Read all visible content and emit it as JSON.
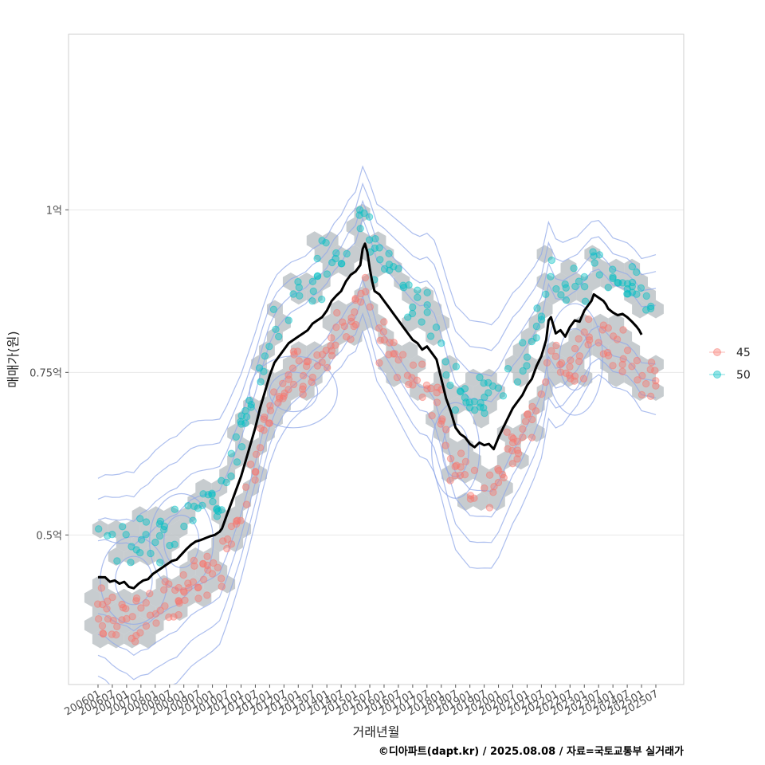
{
  "chart_data": {
    "type": "scatter",
    "title": "",
    "xlabel": "거래년월",
    "ylabel": "매매가(원)",
    "caption": "©디아파트(dapt.kr) / 2025.08.08 / 자료=국토교통부 실거래가",
    "x_ticks": [
      "200601",
      "200607",
      "200701",
      "200707",
      "200801",
      "200807",
      "200901",
      "200907",
      "201001",
      "201007",
      "201101",
      "201107",
      "201201",
      "201207",
      "201301",
      "201307",
      "201401",
      "201407",
      "201501",
      "201507",
      "201601",
      "201607",
      "201701",
      "201707",
      "201801",
      "201807",
      "201901",
      "201907",
      "202001",
      "202007",
      "202101",
      "202107",
      "202201",
      "202207",
      "202301",
      "202307",
      "202401",
      "202407",
      "202501",
      "202507"
    ],
    "y_ticks": [
      {
        "value": 0.5,
        "label": "0.5억"
      },
      {
        "value": 0.75,
        "label": "0.75억"
      },
      {
        "value": 1.0,
        "label": "1억"
      }
    ],
    "ylim": [
      0.27,
      1.27
    ],
    "grid": true,
    "legend_position": "right",
    "series": [
      {
        "name": "45",
        "color": "#F8766D"
      },
      {
        "name": "50",
        "color": "#00BFC4"
      }
    ],
    "hexbin_color": "#a9b0b6",
    "contour_color": "#90a8e8",
    "trend_color": "#000000",
    "trend": [
      [
        0,
        0.435
      ],
      [
        3,
        0.435
      ],
      [
        5,
        0.428
      ],
      [
        7,
        0.43
      ],
      [
        9,
        0.425
      ],
      [
        11,
        0.428
      ],
      [
        13,
        0.42
      ],
      [
        15,
        0.418
      ],
      [
        17,
        0.425
      ],
      [
        19,
        0.43
      ],
      [
        21,
        0.432
      ],
      [
        23,
        0.44
      ],
      [
        25,
        0.445
      ],
      [
        27,
        0.45
      ],
      [
        29,
        0.455
      ],
      [
        31,
        0.46
      ],
      [
        33,
        0.462
      ],
      [
        35,
        0.47
      ],
      [
        37,
        0.478
      ],
      [
        39,
        0.485
      ],
      [
        41,
        0.49
      ],
      [
        43,
        0.492
      ],
      [
        45,
        0.495
      ],
      [
        47,
        0.498
      ],
      [
        49,
        0.5
      ],
      [
        51,
        0.505
      ],
      [
        52,
        0.51
      ],
      [
        54,
        0.53
      ],
      [
        56,
        0.55
      ],
      [
        58,
        0.57
      ],
      [
        60,
        0.59
      ],
      [
        62,
        0.615
      ],
      [
        64,
        0.64
      ],
      [
        66,
        0.665
      ],
      [
        68,
        0.695
      ],
      [
        70,
        0.72
      ],
      [
        72,
        0.745
      ],
      [
        74,
        0.765
      ],
      [
        76,
        0.775
      ],
      [
        78,
        0.785
      ],
      [
        80,
        0.795
      ],
      [
        82,
        0.8
      ],
      [
        84,
        0.805
      ],
      [
        86,
        0.81
      ],
      [
        88,
        0.815
      ],
      [
        90,
        0.825
      ],
      [
        92,
        0.83
      ],
      [
        94,
        0.835
      ],
      [
        96,
        0.845
      ],
      [
        98,
        0.86
      ],
      [
        100,
        0.868
      ],
      [
        102,
        0.875
      ],
      [
        104,
        0.89
      ],
      [
        106,
        0.9
      ],
      [
        108,
        0.905
      ],
      [
        110,
        0.915
      ],
      [
        111,
        0.94
      ],
      [
        112,
        0.948
      ],
      [
        113,
        0.935
      ],
      [
        114,
        0.91
      ],
      [
        115,
        0.89
      ],
      [
        116,
        0.875
      ],
      [
        118,
        0.87
      ],
      [
        120,
        0.86
      ],
      [
        122,
        0.85
      ],
      [
        124,
        0.84
      ],
      [
        126,
        0.83
      ],
      [
        128,
        0.82
      ],
      [
        130,
        0.81
      ],
      [
        132,
        0.8
      ],
      [
        134,
        0.795
      ],
      [
        136,
        0.785
      ],
      [
        138,
        0.79
      ],
      [
        140,
        0.78
      ],
      [
        142,
        0.77
      ],
      [
        144,
        0.74
      ],
      [
        146,
        0.71
      ],
      [
        148,
        0.69
      ],
      [
        150,
        0.665
      ],
      [
        152,
        0.655
      ],
      [
        154,
        0.65
      ],
      [
        156,
        0.64
      ],
      [
        158,
        0.635
      ],
      [
        160,
        0.642
      ],
      [
        162,
        0.638
      ],
      [
        164,
        0.64
      ],
      [
        166,
        0.632
      ],
      [
        168,
        0.65
      ],
      [
        170,
        0.665
      ],
      [
        172,
        0.68
      ],
      [
        174,
        0.695
      ],
      [
        176,
        0.705
      ],
      [
        178,
        0.715
      ],
      [
        180,
        0.73
      ],
      [
        182,
        0.74
      ],
      [
        184,
        0.76
      ],
      [
        186,
        0.775
      ],
      [
        188,
        0.8
      ],
      [
        189,
        0.83
      ],
      [
        190,
        0.835
      ],
      [
        192,
        0.81
      ],
      [
        194,
        0.815
      ],
      [
        196,
        0.805
      ],
      [
        198,
        0.82
      ],
      [
        200,
        0.83
      ],
      [
        202,
        0.828
      ],
      [
        204,
        0.845
      ],
      [
        206,
        0.855
      ],
      [
        207,
        0.86
      ],
      [
        208,
        0.87
      ],
      [
        210,
        0.865
      ],
      [
        212,
        0.86
      ],
      [
        213,
        0.855
      ],
      [
        214,
        0.848
      ],
      [
        216,
        0.842
      ],
      [
        218,
        0.838
      ],
      [
        220,
        0.84
      ],
      [
        222,
        0.835
      ],
      [
        224,
        0.828
      ],
      [
        226,
        0.82
      ],
      [
        227,
        0.815
      ],
      [
        228,
        0.808
      ]
    ]
  }
}
